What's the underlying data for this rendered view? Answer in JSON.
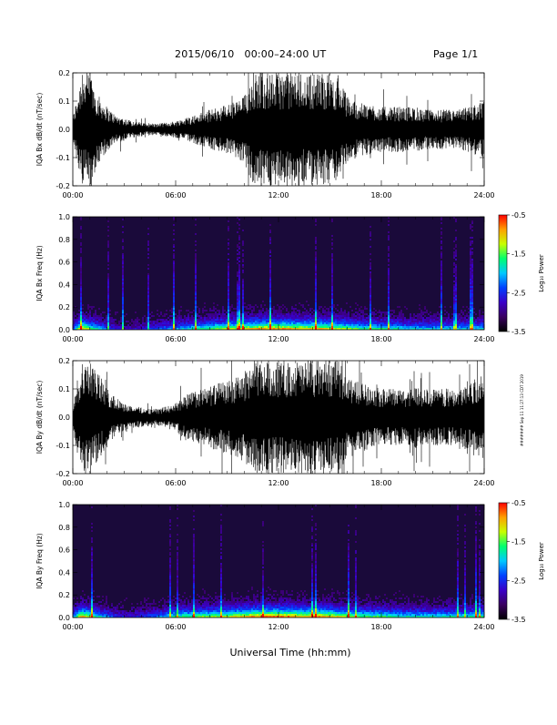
{
  "header": {
    "title": "2015/06/10   00:00–24:00 UT",
    "page": "Page 1/1"
  },
  "footer": {
    "xlabel": "Universal Time (hh:mm)"
  },
  "stamp": "####### Sep 11 11:27:13 CDT 2019",
  "colors": {
    "trace": "#000000",
    "colorbar": [
      "#000000",
      "#3a0060",
      "#3a00c8",
      "#0040ff",
      "#00c8ff",
      "#00ff70",
      "#c8ff00",
      "#ffa000",
      "#ff0000"
    ]
  },
  "chart_data": [
    {
      "type": "line",
      "ylabel": "IQA Bx dB/dt (nT/sec)",
      "x_ticks": [
        "00:00",
        "06:00",
        "12:00",
        "18:00",
        "24:00"
      ],
      "xlim": [
        0,
        24
      ],
      "ylim": [
        -0.2,
        0.2
      ],
      "y_ticks": [
        "-0.2",
        "-0.1",
        "0.0",
        "0.1",
        "0.2"
      ],
      "series": [
        {
          "x": [
            0,
            0.5,
            1,
            1.5,
            2,
            2.5,
            3,
            3.5,
            4,
            4.5,
            5,
            5.5,
            6,
            6.5,
            7,
            7.5,
            8,
            8.5,
            9,
            9.5,
            10,
            10.5,
            11,
            11.5,
            12,
            12.5,
            13,
            13.5,
            14,
            14.5,
            15,
            15.5,
            16,
            16.5,
            17,
            17.5,
            18,
            18.5,
            19,
            19.5,
            20,
            20.5,
            21,
            21.5,
            22,
            22.5,
            23,
            23.5,
            24
          ],
          "amplitude": [
            0.04,
            0.2,
            0.2,
            0.12,
            0.08,
            0.05,
            0.04,
            0.03,
            0.025,
            0.02,
            0.02,
            0.025,
            0.03,
            0.04,
            0.05,
            0.06,
            0.07,
            0.08,
            0.09,
            0.1,
            0.12,
            0.2,
            0.2,
            0.2,
            0.2,
            0.2,
            0.2,
            0.2,
            0.2,
            0.2,
            0.2,
            0.18,
            0.12,
            0.1,
            0.09,
            0.09,
            0.08,
            0.08,
            0.08,
            0.08,
            0.08,
            0.07,
            0.07,
            0.07,
            0.07,
            0.07,
            0.08,
            0.09,
            0.1
          ]
        }
      ]
    },
    {
      "type": "heatmap",
      "ylabel": "IQA Bx Freq (Hz)",
      "x_ticks": [
        "00:00",
        "06:00",
        "12:00",
        "18:00",
        "24:00"
      ],
      "xlim": [
        0,
        24
      ],
      "ylim": [
        0,
        1.0
      ],
      "y_ticks": [
        "0.0",
        "0.2",
        "0.4",
        "0.6",
        "0.8",
        "1.0"
      ],
      "colorbar": {
        "label": "Log₁₀ Power",
        "ticks": [
          "-0.5",
          "-1.5",
          "-2.5",
          "-3.5"
        ],
        "range": [
          -3.5,
          -0.5
        ]
      },
      "low_freq_power_profile": [
        0.3,
        0.9,
        0.7,
        0.5,
        0.35,
        0.25,
        0.2,
        0.2,
        0.25,
        0.3,
        0.35,
        0.4,
        0.45,
        0.5,
        0.55,
        0.6,
        0.65,
        0.7,
        0.75,
        0.75,
        0.8,
        0.85,
        0.9,
        0.9,
        0.9,
        0.9,
        0.85,
        0.85,
        0.85,
        0.85,
        0.8,
        0.75,
        0.7,
        0.65,
        0.6,
        0.6,
        0.6,
        0.55,
        0.55,
        0.5,
        0.5,
        0.5,
        0.5,
        0.5,
        0.5,
        0.5,
        0.5,
        0.5,
        0.5
      ]
    },
    {
      "type": "line",
      "ylabel": "IQA By dB/dt (nT/sec)",
      "x_ticks": [
        "00:00",
        "06:00",
        "12:00",
        "18:00",
        "24:00"
      ],
      "xlim": [
        0,
        24
      ],
      "ylim": [
        -0.2,
        0.2
      ],
      "y_ticks": [
        "-0.2",
        "-0.1",
        "0.0",
        "0.1",
        "0.2"
      ],
      "series": [
        {
          "x": [
            0,
            0.5,
            1,
            1.5,
            2,
            2.5,
            3,
            3.5,
            4,
            4.5,
            5,
            5.5,
            6,
            6.5,
            7,
            7.5,
            8,
            8.5,
            9,
            9.5,
            10,
            10.5,
            11,
            11.5,
            12,
            12.5,
            13,
            13.5,
            14,
            14.5,
            15,
            15.5,
            16,
            16.5,
            17,
            17.5,
            18,
            18.5,
            19,
            19.5,
            20,
            20.5,
            21,
            21.5,
            22,
            22.5,
            23,
            23.5,
            24
          ],
          "amplitude": [
            0.05,
            0.2,
            0.2,
            0.16,
            0.1,
            0.07,
            0.05,
            0.04,
            0.035,
            0.03,
            0.03,
            0.04,
            0.05,
            0.08,
            0.09,
            0.1,
            0.11,
            0.12,
            0.13,
            0.14,
            0.16,
            0.2,
            0.2,
            0.2,
            0.2,
            0.2,
            0.2,
            0.2,
            0.2,
            0.2,
            0.2,
            0.2,
            0.15,
            0.13,
            0.12,
            0.11,
            0.1,
            0.1,
            0.1,
            0.1,
            0.11,
            0.1,
            0.1,
            0.1,
            0.1,
            0.1,
            0.12,
            0.14,
            0.16
          ]
        }
      ]
    },
    {
      "type": "heatmap",
      "ylabel": "IQA By Freq (Hz)",
      "x_ticks": [
        "00:00",
        "06:00",
        "12:00",
        "18:00",
        "24:00"
      ],
      "xlim": [
        0,
        24
      ],
      "ylim": [
        0,
        1.0
      ],
      "y_ticks": [
        "0.0",
        "0.2",
        "0.4",
        "0.6",
        "0.8",
        "1.0"
      ],
      "colorbar": {
        "label": "Log₁₀ Power",
        "ticks": [
          "-0.5",
          "-1.5",
          "-2.5",
          "-3.5"
        ],
        "range": [
          -3.5,
          -0.5
        ]
      },
      "low_freq_power_profile": [
        0.35,
        0.9,
        0.75,
        0.55,
        0.4,
        0.3,
        0.25,
        0.25,
        0.3,
        0.35,
        0.4,
        0.5,
        0.6,
        0.65,
        0.65,
        0.7,
        0.7,
        0.75,
        0.75,
        0.8,
        0.85,
        0.9,
        0.95,
        0.95,
        0.95,
        0.95,
        0.9,
        0.9,
        0.9,
        0.9,
        0.85,
        0.8,
        0.75,
        0.7,
        0.65,
        0.65,
        0.65,
        0.6,
        0.6,
        0.55,
        0.55,
        0.55,
        0.55,
        0.55,
        0.55,
        0.55,
        0.55,
        0.6,
        0.6
      ]
    }
  ]
}
